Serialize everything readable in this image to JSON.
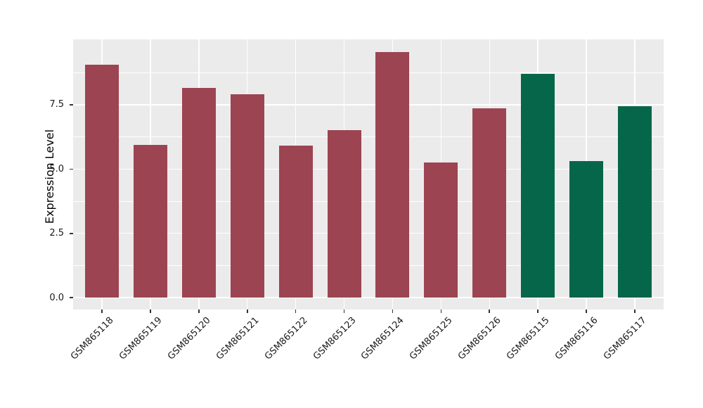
{
  "chart_data": {
    "type": "bar",
    "title": "",
    "xlabel": "",
    "ylabel": "Expression Level",
    "categories": [
      "GSM865118",
      "GSM865119",
      "GSM865120",
      "GSM865121",
      "GSM865122",
      "GSM865123",
      "GSM865124",
      "GSM865125",
      "GSM865126",
      "GSM865115",
      "GSM865116",
      "GSM865117"
    ],
    "values": [
      9.05,
      5.95,
      8.15,
      7.9,
      5.9,
      6.5,
      9.55,
      5.25,
      7.35,
      8.7,
      5.3,
      7.45
    ],
    "bar_colors": [
      "#9c4452",
      "#9c4452",
      "#9c4452",
      "#9c4452",
      "#9c4452",
      "#9c4452",
      "#9c4452",
      "#9c4452",
      "#9c4452",
      "#066649",
      "#066649",
      "#066649"
    ],
    "palette": {
      "maroon_group": "#9c4452",
      "green_group": "#066649"
    },
    "ylim": [
      -0.46,
      10.04
    ],
    "yticks": [
      0.0,
      2.5,
      5.0,
      7.5
    ],
    "ytick_labels": [
      "0.0",
      "2.5",
      "5.0",
      "7.5"
    ],
    "minor_yticks": [
      1.25,
      3.75,
      6.25,
      8.75
    ],
    "grid": true,
    "grid_color": "#ffffff",
    "panel_background": "#ebebeb",
    "figure_background": "#ffffff",
    "legend_position": "none",
    "x_tick_rotation_deg": 45
  }
}
